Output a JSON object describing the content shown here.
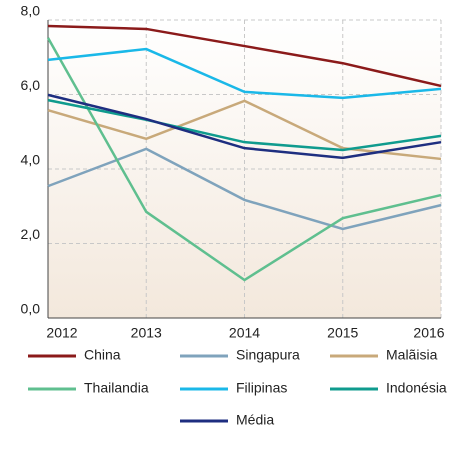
{
  "chart_data": {
    "type": "line",
    "categories": [
      "2012",
      "2013",
      "2014",
      "2015",
      "2016"
    ],
    "series": [
      {
        "name": "China",
        "color": "#8b1a1a",
        "values": [
          7.84,
          7.76,
          7.3,
          6.84,
          6.23
        ]
      },
      {
        "name": "Singapura",
        "color": "#7fa3bc",
        "values": [
          3.54,
          4.54,
          3.17,
          2.39,
          3.03
        ]
      },
      {
        "name": "Malãisia",
        "color": "#c8a97a",
        "values": [
          5.58,
          4.81,
          5.83,
          4.56,
          4.27
        ]
      },
      {
        "name": "Thailandia",
        "color": "#5fbf8f",
        "values": [
          7.52,
          2.85,
          1.02,
          2.68,
          3.3
        ]
      },
      {
        "name": "Filipinas",
        "color": "#1ab8e8",
        "values": [
          6.93,
          7.22,
          6.07,
          5.91,
          6.15
        ]
      },
      {
        "name": "Indonésia",
        "color": "#0f9b8e",
        "values": [
          5.85,
          5.32,
          4.72,
          4.51,
          4.89
        ]
      },
      {
        "name": "Média",
        "color": "#1e2e80",
        "values": [
          5.99,
          5.34,
          4.56,
          4.3,
          4.72
        ]
      }
    ],
    "ylim": [
      0,
      8
    ],
    "yticks": [
      {
        "value": 0,
        "label": "0,0"
      },
      {
        "value": 2,
        "label": "2,0"
      },
      {
        "value": 4,
        "label": "4,0"
      },
      {
        "value": 6,
        "label": "6,0"
      },
      {
        "value": 8,
        "label": "8,0"
      }
    ],
    "grid": true
  }
}
